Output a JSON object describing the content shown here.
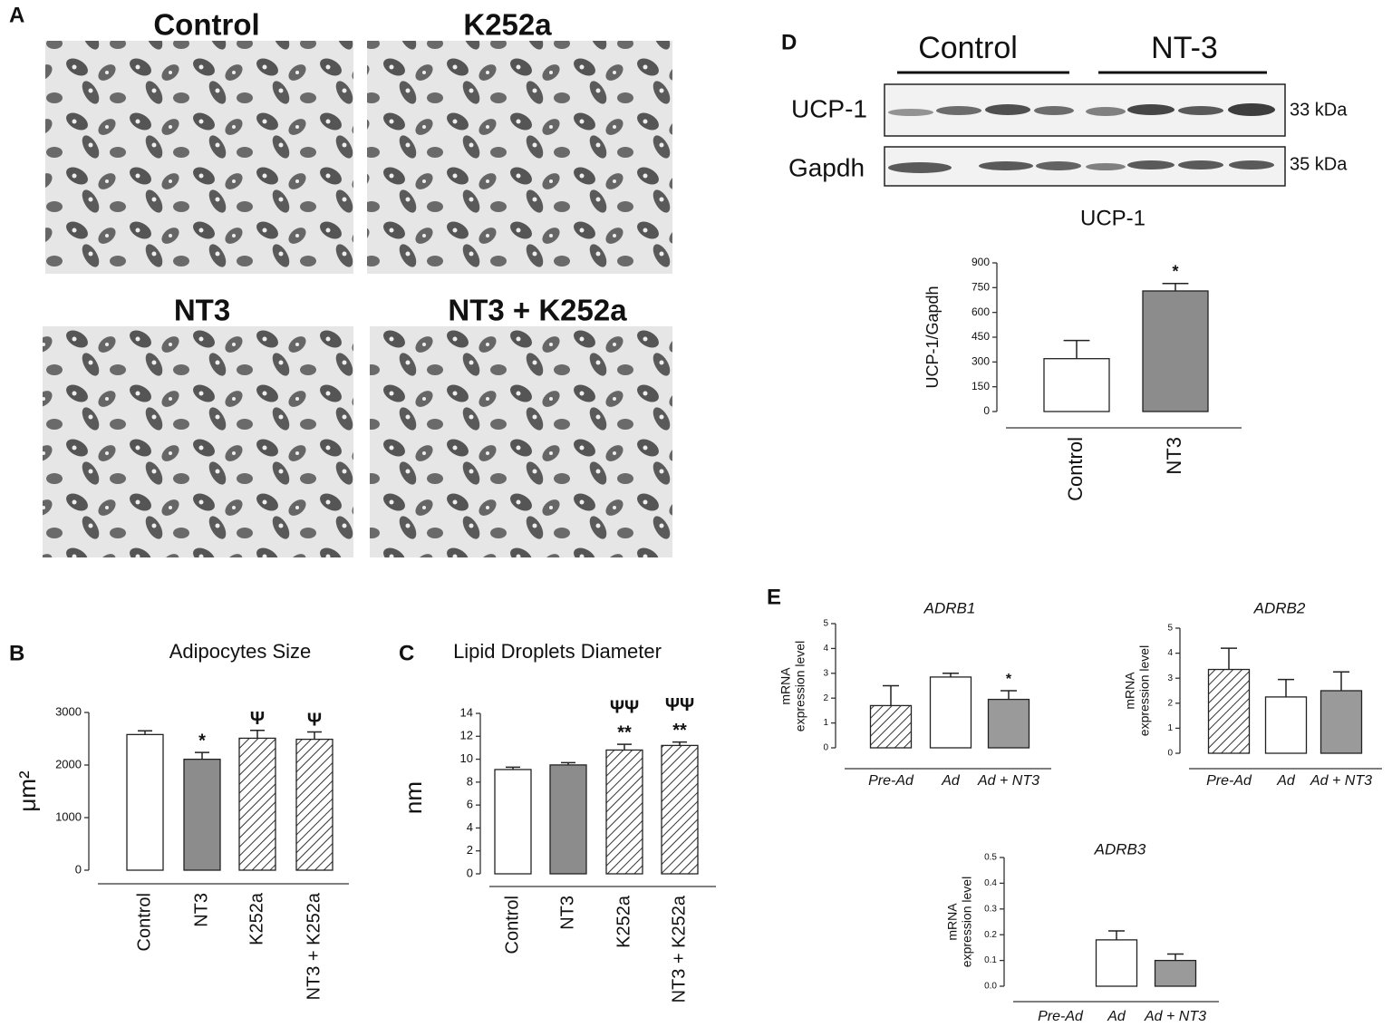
{
  "panel_labels": [
    "A",
    "B",
    "C",
    "D",
    "E"
  ],
  "micrographs": [
    {
      "title": "Control"
    },
    {
      "title": "K252a"
    },
    {
      "title": "NT3"
    },
    {
      "title": "NT3 + K252a"
    }
  ],
  "blot": {
    "groups": [
      "Control",
      "NT-3"
    ],
    "rows": [
      {
        "label": "UCP-1",
        "size": "33 kDa"
      },
      {
        "label": "Gapdh",
        "size": "35 kDa"
      }
    ]
  },
  "chart_data": [
    {
      "type": "bar",
      "title": "Adipocytes Size",
      "ylabel": [
        "μm²"
      ],
      "categories": [
        "Control",
        "NT3",
        "K252a",
        "NT3 + K252a"
      ],
      "values": [
        2580,
        2110,
        2510,
        2490
      ],
      "errors": [
        70,
        130,
        150,
        140
      ],
      "colors": [
        "#ffffff",
        "#8c8c8c",
        "#ffffff",
        "#ffffff"
      ],
      "hatch": [
        false,
        false,
        true,
        true
      ],
      "annotations": [
        null,
        [
          "*"
        ],
        [
          "Ψ"
        ],
        [
          "Ψ"
        ]
      ],
      "ylim": [
        0,
        3000
      ],
      "yticks": [
        0,
        1000,
        2000,
        3000
      ]
    },
    {
      "type": "bar",
      "title": "Lipid Droplets Diameter",
      "ylabel": [
        "nm"
      ],
      "categories": [
        "Control",
        "NT3",
        "K252a",
        "NT3 + K252a"
      ],
      "values": [
        9.1,
        9.5,
        10.8,
        11.2
      ],
      "errors": [
        0.2,
        0.2,
        0.5,
        0.3
      ],
      "colors": [
        "#ffffff",
        "#8c8c8c",
        "#ffffff",
        "#ffffff"
      ],
      "hatch": [
        false,
        false,
        true,
        true
      ],
      "annotations": [
        null,
        null,
        [
          "ΨΨ",
          "**"
        ],
        [
          "ΨΨ",
          "**"
        ]
      ],
      "ylim": [
        0,
        14
      ],
      "yticks": [
        0,
        2,
        4,
        6,
        8,
        10,
        12,
        14
      ]
    },
    {
      "type": "bar",
      "title": "UCP-1",
      "ylabel": [
        "UCP-1/Gapdh"
      ],
      "categories": [
        "Control",
        "NT3"
      ],
      "values": [
        320,
        730
      ],
      "errors": [
        110,
        45
      ],
      "colors": [
        "#ffffff",
        "#8c8c8c"
      ],
      "hatch": [
        false,
        false
      ],
      "annotations": [
        null,
        [
          "*"
        ]
      ],
      "ylim": [
        0,
        900
      ],
      "yticks": [
        0,
        150,
        300,
        450,
        600,
        750,
        900
      ]
    },
    {
      "type": "bar",
      "title": "ADRB1",
      "ylabel": [
        "mRNA",
        "expression level"
      ],
      "categories": [
        "Pre-Ad",
        "Ad",
        "Ad + NT3"
      ],
      "values": [
        1.7,
        2.85,
        1.95
      ],
      "errors": [
        0.8,
        0.15,
        0.35
      ],
      "colors": [
        "#ffffff",
        "#ffffff",
        "#9a9a9a"
      ],
      "hatch": [
        true,
        false,
        false
      ],
      "annotations": [
        null,
        null,
        [
          "*"
        ]
      ],
      "ylim": [
        0,
        5
      ],
      "yticks": [
        0,
        1,
        2,
        3,
        4,
        5
      ]
    },
    {
      "type": "bar",
      "title": "ADRB2",
      "ylabel": [
        "mRNA",
        "expression level"
      ],
      "categories": [
        "Pre-Ad",
        "Ad",
        "Ad + NT3"
      ],
      "values": [
        3.35,
        2.25,
        2.5
      ],
      "errors": [
        0.85,
        0.7,
        0.75
      ],
      "colors": [
        "#ffffff",
        "#ffffff",
        "#9a9a9a"
      ],
      "hatch": [
        true,
        false,
        false
      ],
      "annotations": [
        null,
        null,
        null
      ],
      "ylim": [
        0,
        5
      ],
      "yticks": [
        0,
        1,
        2,
        3,
        4,
        5
      ]
    },
    {
      "type": "bar",
      "title": "ADRB3",
      "ylabel": [
        "mRNA",
        "expression level"
      ],
      "categories": [
        "Pre-Ad",
        "Ad",
        "Ad + NT3"
      ],
      "values": [
        0,
        0.18,
        0.1
      ],
      "errors": [
        null,
        0.035,
        0.025
      ],
      "colors": [
        "#ffffff",
        "#ffffff",
        "#9a9a9a"
      ],
      "hatch": [
        true,
        false,
        false
      ],
      "annotations": [
        null,
        null,
        null
      ],
      "ylim": [
        0,
        0.5
      ],
      "yticks": [
        {
          "value": 0,
          "label": "0.0"
        },
        0.1,
        0.2,
        0.3,
        0.4,
        0.5
      ]
    }
  ]
}
